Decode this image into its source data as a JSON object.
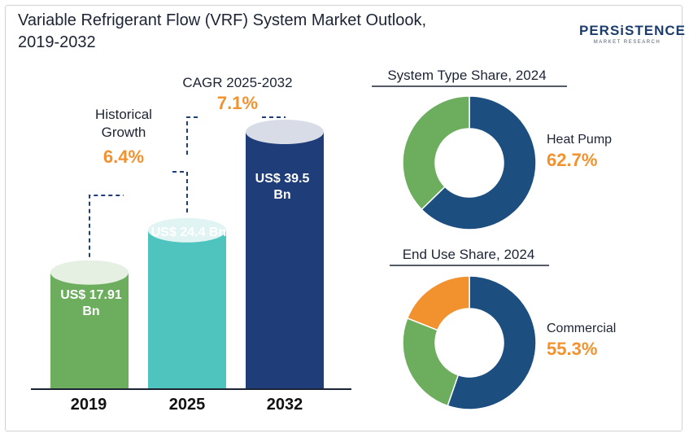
{
  "title_line1": "Variable Refrigerant Flow (VRF) System Market Outlook,",
  "title_line2": "2019-2032",
  "logo": {
    "name": "PERSiSTENCE",
    "tagline": "MARKET RESEARCH"
  },
  "colors": {
    "green": "#6cae5e",
    "teal": "#4fc4be",
    "navy": "#1f3d78",
    "donut_blue": "#1c4e80",
    "orange": "#f2922f",
    "text_dark": "#1c2434"
  },
  "annotations": {
    "historical_label": "Historical Growth",
    "historical_value": "6.4%",
    "cagr_label": "CAGR 2025-2032",
    "cagr_value": "7.1%"
  },
  "chart_data": [
    {
      "type": "bar",
      "categories": [
        "2019",
        "2025",
        "2032"
      ],
      "values": [
        17.91,
        24.4,
        39.5
      ],
      "value_labels": [
        "US$ 17.91 Bn",
        "US$ 24.4 Bn",
        "US$ 39.5 Bn"
      ],
      "unit": "US$ Bn",
      "colors": [
        "#6cae5e",
        "#4fc4be",
        "#1f3d78"
      ]
    },
    {
      "type": "pie",
      "title": "System Type Share, 2024",
      "highlight_label": "Heat Pump",
      "highlight_value": "62.7%",
      "slices": [
        {
          "value": 62.7,
          "color": "#1c4e80"
        },
        {
          "value": 37.3,
          "color": "#6cae5e"
        }
      ]
    },
    {
      "type": "pie",
      "title": "End Use Share, 2024",
      "highlight_label": "Commercial",
      "highlight_value": "55.3%",
      "slices": [
        {
          "value": 55.3,
          "color": "#1c4e80"
        },
        {
          "value": 25.7,
          "color": "#6cae5e"
        },
        {
          "value": 19.0,
          "color": "#f2922f"
        }
      ]
    }
  ]
}
